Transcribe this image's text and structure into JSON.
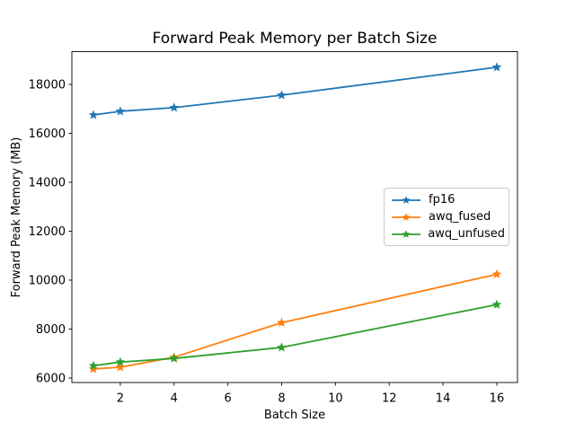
{
  "chart_data": {
    "type": "line",
    "title": "Forward Peak Memory per Batch Size",
    "xlabel": "Batch Size",
    "ylabel": "Forward Peak Memory (MB)",
    "x": [
      1,
      2,
      4,
      8,
      16
    ],
    "series": [
      {
        "name": "fp16",
        "color": "#1f77b4",
        "marker": "star",
        "values": [
          16750,
          16900,
          17050,
          17560,
          18700
        ]
      },
      {
        "name": "awq_fused",
        "color": "#ff7f0e",
        "marker": "star",
        "values": [
          6370,
          6440,
          6850,
          8260,
          10240
        ]
      },
      {
        "name": "awq_unfused",
        "color": "#2ca02c",
        "marker": "star",
        "values": [
          6500,
          6650,
          6800,
          7250,
          9000
        ]
      }
    ],
    "x_ticks": [
      2,
      4,
      6,
      8,
      10,
      12,
      14,
      16
    ],
    "y_ticks": [
      6000,
      8000,
      10000,
      12000,
      14000,
      16000,
      18000
    ],
    "xlim": [
      0.2,
      16.77
    ],
    "ylim": [
      5816,
      19339
    ],
    "grid": false,
    "legend": {
      "entries": [
        "fp16",
        "awq_fused",
        "awq_unfused"
      ],
      "position": "center-right"
    },
    "axis_color": "#000000",
    "background": "#ffffff"
  }
}
